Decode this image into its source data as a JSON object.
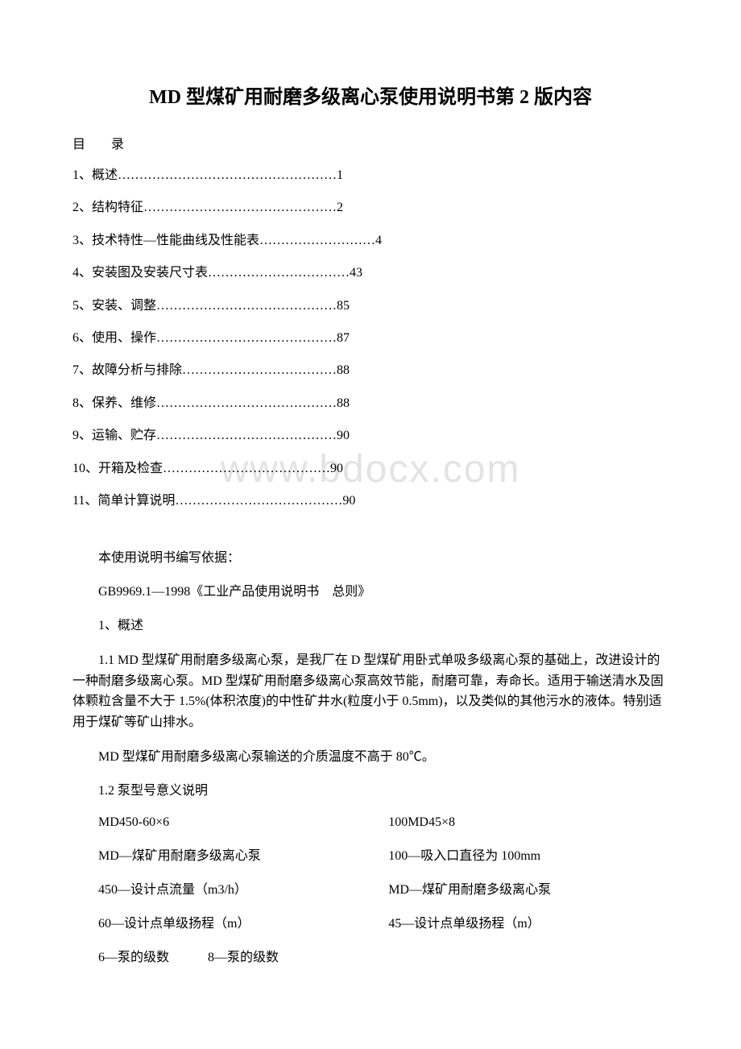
{
  "title": "MD 型煤矿用耐磨多级离心泵使用说明书第 2 版内容",
  "toc_header": "目　录",
  "toc": [
    "1、概述……………………………………………1",
    "2、结构特征………………………………………2",
    "3、技术特性—性能曲线及性能表………………………4",
    "4、安装图及安装尺寸表……………………………43",
    "5、安装、调整……………………………………85",
    "6、使用、操作……………………………………87",
    "7、故障分析与排除………………………………88",
    "8、保养、维修……………………………………88",
    "9、运输、贮存……………………………………90",
    "10、开箱及检查…………………………………90",
    "11、简单计算说明…………………………………90"
  ],
  "basis_label": "本使用说明书编写依据：",
  "basis_text": "GB9969.1—1998《工业产品使用说明书　总则》",
  "section1_header": "1、概述",
  "section1_1": "1.1 MD 型煤矿用耐磨多级离心泵，是我厂在 D 型煤矿用卧式单吸多级离心泵的基础上，改进设计的一种耐磨多级离心泵。MD 型煤矿用耐磨多级离心泵高效节能，耐磨可靠，寿命长。适用于输送清水及固体颗粒含量不大于 1.5%(体积浓度)的中性矿井水(粒度小于 0.5mm)，以及类似的其他污水的液体。特别适用于煤矿等矿山排水。",
  "section1_temp": "MD 型煤矿用耐磨多级离心泵输送的介质温度不高于 80℃。",
  "section1_2_header": "1.2 泵型号意义说明",
  "model_rows": [
    {
      "left": "MD450-60×6",
      "right": "100MD45×8"
    },
    {
      "left": "MD—煤矿用耐磨多级离心泵",
      "right": "100—吸入口直径为 100mm"
    },
    {
      "left": "450—设计点流量（m3/h）",
      "right": "MD—煤矿用耐磨多级离心泵"
    },
    {
      "left": "60—设计点单级扬程（m）",
      "right": "45—设计点单级扬程（m）"
    },
    {
      "left": "6—泵的级数　　　8—泵的级数",
      "right": ""
    }
  ],
  "watermark": "www.bdocx.com"
}
